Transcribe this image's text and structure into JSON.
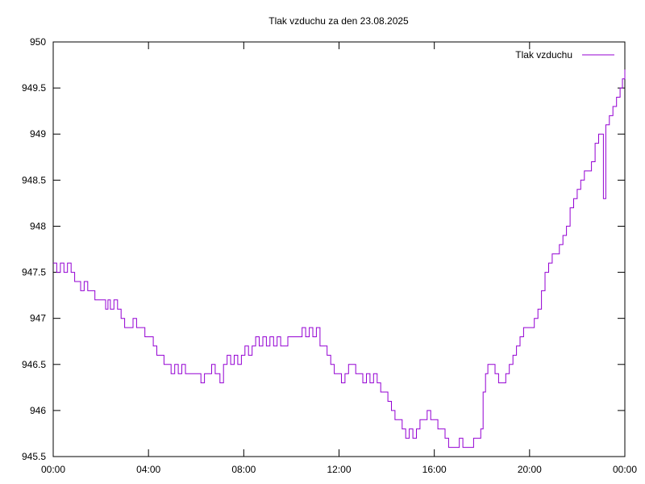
{
  "chart_data": {
    "type": "line",
    "title": "Tlak vzduchu za den 23.08.2025",
    "xlabel": "",
    "ylabel": "",
    "legend_position": "top-right",
    "grid": false,
    "xlim": [
      0,
      24
    ],
    "ylim": [
      945.5,
      950
    ],
    "x_ticks": [
      {
        "value": 0,
        "label": "00:00"
      },
      {
        "value": 4,
        "label": "04:00"
      },
      {
        "value": 8,
        "label": "08:00"
      },
      {
        "value": 12,
        "label": "12:00"
      },
      {
        "value": 16,
        "label": "16:00"
      },
      {
        "value": 20,
        "label": "20:00"
      },
      {
        "value": 24,
        "label": "00:00"
      }
    ],
    "y_ticks": [
      {
        "value": 945.5,
        "label": "945.5"
      },
      {
        "value": 946,
        "label": "946"
      },
      {
        "value": 946.5,
        "label": "946.5"
      },
      {
        "value": 947,
        "label": "947"
      },
      {
        "value": 947.5,
        "label": "947.5"
      },
      {
        "value": 948,
        "label": "948"
      },
      {
        "value": 948.5,
        "label": "948.5"
      },
      {
        "value": 949,
        "label": "949"
      },
      {
        "value": 949.5,
        "label": "949.5"
      },
      {
        "value": 950,
        "label": "950"
      }
    ],
    "series": [
      {
        "name": "Tlak vzduchu",
        "color": "#9400d3",
        "points": [
          [
            0.0,
            947.6
          ],
          [
            0.15,
            947.5
          ],
          [
            0.3,
            947.6
          ],
          [
            0.45,
            947.5
          ],
          [
            0.6,
            947.6
          ],
          [
            0.75,
            947.5
          ],
          [
            0.9,
            947.4
          ],
          [
            1.0,
            947.4
          ],
          [
            1.15,
            947.3
          ],
          [
            1.3,
            947.4
          ],
          [
            1.45,
            947.3
          ],
          [
            1.6,
            947.3
          ],
          [
            1.75,
            947.2
          ],
          [
            1.9,
            947.2
          ],
          [
            2.0,
            947.2
          ],
          [
            2.2,
            947.1
          ],
          [
            2.3,
            947.2
          ],
          [
            2.4,
            947.1
          ],
          [
            2.55,
            947.2
          ],
          [
            2.7,
            947.1
          ],
          [
            2.85,
            947.0
          ],
          [
            3.0,
            946.9
          ],
          [
            3.2,
            946.9
          ],
          [
            3.35,
            947.0
          ],
          [
            3.5,
            946.9
          ],
          [
            3.7,
            946.9
          ],
          [
            3.85,
            946.8
          ],
          [
            4.0,
            946.8
          ],
          [
            4.2,
            946.7
          ],
          [
            4.35,
            946.6
          ],
          [
            4.5,
            946.6
          ],
          [
            4.65,
            946.5
          ],
          [
            4.8,
            946.5
          ],
          [
            4.95,
            946.4
          ],
          [
            5.1,
            946.5
          ],
          [
            5.25,
            946.4
          ],
          [
            5.4,
            946.5
          ],
          [
            5.55,
            946.4
          ],
          [
            5.7,
            946.4
          ],
          [
            5.85,
            946.4
          ],
          [
            6.0,
            946.4
          ],
          [
            6.2,
            946.3
          ],
          [
            6.35,
            946.4
          ],
          [
            6.5,
            946.4
          ],
          [
            6.65,
            946.5
          ],
          [
            6.8,
            946.4
          ],
          [
            7.0,
            946.3
          ],
          [
            7.15,
            946.5
          ],
          [
            7.3,
            946.6
          ],
          [
            7.45,
            946.5
          ],
          [
            7.6,
            946.6
          ],
          [
            7.75,
            946.5
          ],
          [
            7.9,
            946.6
          ],
          [
            8.05,
            946.7
          ],
          [
            8.2,
            946.6
          ],
          [
            8.35,
            946.7
          ],
          [
            8.5,
            946.8
          ],
          [
            8.65,
            946.7
          ],
          [
            8.8,
            946.8
          ],
          [
            8.95,
            946.7
          ],
          [
            9.1,
            946.8
          ],
          [
            9.25,
            946.7
          ],
          [
            9.4,
            946.8
          ],
          [
            9.55,
            946.7
          ],
          [
            9.7,
            946.7
          ],
          [
            9.85,
            946.8
          ],
          [
            10.0,
            946.8
          ],
          [
            10.15,
            946.8
          ],
          [
            10.3,
            946.8
          ],
          [
            10.45,
            946.9
          ],
          [
            10.6,
            946.8
          ],
          [
            10.75,
            946.9
          ],
          [
            10.9,
            946.8
          ],
          [
            11.05,
            946.9
          ],
          [
            11.2,
            946.7
          ],
          [
            11.35,
            946.7
          ],
          [
            11.5,
            946.6
          ],
          [
            11.65,
            946.5
          ],
          [
            11.8,
            946.4
          ],
          [
            11.95,
            946.4
          ],
          [
            12.1,
            946.3
          ],
          [
            12.25,
            946.4
          ],
          [
            12.4,
            946.5
          ],
          [
            12.55,
            946.5
          ],
          [
            12.7,
            946.4
          ],
          [
            12.85,
            946.4
          ],
          [
            13.0,
            946.3
          ],
          [
            13.15,
            946.4
          ],
          [
            13.3,
            946.3
          ],
          [
            13.45,
            946.4
          ],
          [
            13.6,
            946.3
          ],
          [
            13.75,
            946.2
          ],
          [
            13.9,
            946.2
          ],
          [
            14.05,
            946.1
          ],
          [
            14.2,
            946.0
          ],
          [
            14.35,
            945.9
          ],
          [
            14.5,
            945.9
          ],
          [
            14.65,
            945.8
          ],
          [
            14.8,
            945.7
          ],
          [
            14.95,
            945.8
          ],
          [
            15.1,
            945.7
          ],
          [
            15.25,
            945.8
          ],
          [
            15.4,
            945.9
          ],
          [
            15.55,
            945.9
          ],
          [
            15.7,
            946.0
          ],
          [
            15.85,
            945.9
          ],
          [
            16.0,
            945.9
          ],
          [
            16.15,
            945.8
          ],
          [
            16.3,
            945.8
          ],
          [
            16.45,
            945.7
          ],
          [
            16.6,
            945.6
          ],
          [
            16.75,
            945.6
          ],
          [
            16.9,
            945.6
          ],
          [
            17.05,
            945.7
          ],
          [
            17.2,
            945.6
          ],
          [
            17.35,
            945.6
          ],
          [
            17.5,
            945.6
          ],
          [
            17.65,
            945.7
          ],
          [
            17.8,
            945.7
          ],
          [
            17.95,
            945.8
          ],
          [
            18.05,
            946.2
          ],
          [
            18.15,
            946.4
          ],
          [
            18.25,
            946.5
          ],
          [
            18.4,
            946.5
          ],
          [
            18.55,
            946.4
          ],
          [
            18.7,
            946.3
          ],
          [
            18.85,
            946.3
          ],
          [
            19.0,
            946.4
          ],
          [
            19.15,
            946.5
          ],
          [
            19.3,
            946.6
          ],
          [
            19.45,
            946.7
          ],
          [
            19.6,
            946.8
          ],
          [
            19.75,
            946.9
          ],
          [
            19.9,
            946.9
          ],
          [
            20.05,
            946.9
          ],
          [
            20.2,
            947.0
          ],
          [
            20.35,
            947.1
          ],
          [
            20.5,
            947.3
          ],
          [
            20.65,
            947.5
          ],
          [
            20.8,
            947.6
          ],
          [
            20.95,
            947.7
          ],
          [
            21.1,
            947.7
          ],
          [
            21.25,
            947.8
          ],
          [
            21.4,
            947.9
          ],
          [
            21.55,
            948.0
          ],
          [
            21.7,
            948.2
          ],
          [
            21.85,
            948.3
          ],
          [
            22.0,
            948.4
          ],
          [
            22.15,
            948.5
          ],
          [
            22.3,
            948.6
          ],
          [
            22.45,
            948.6
          ],
          [
            22.6,
            948.7
          ],
          [
            22.75,
            948.9
          ],
          [
            22.9,
            949.0
          ],
          [
            23.0,
            949.0
          ],
          [
            23.1,
            948.3
          ],
          [
            23.2,
            949.1
          ],
          [
            23.35,
            949.2
          ],
          [
            23.5,
            949.3
          ],
          [
            23.65,
            949.4
          ],
          [
            23.8,
            949.5
          ],
          [
            23.9,
            949.6
          ],
          [
            24.0,
            949.7
          ]
        ]
      }
    ]
  }
}
